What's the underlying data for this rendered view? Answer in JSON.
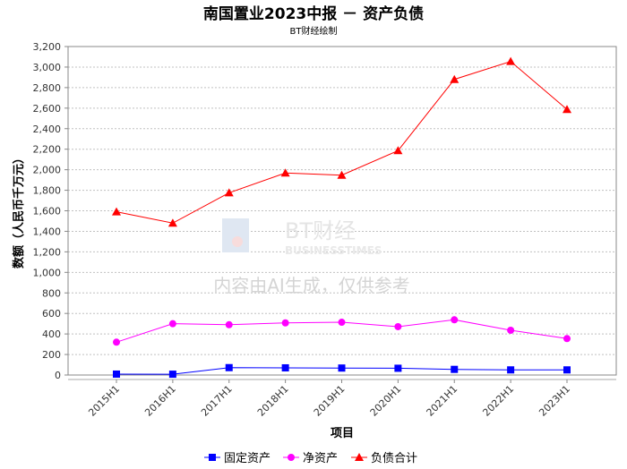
{
  "chart_data": {
    "type": "line",
    "title": "南国置业2023中报 － 资产负债",
    "subtitle": "BT财经绘制",
    "xlabel": "项目",
    "ylabel": "数额（人民币千万元）",
    "categories": [
      "2015H1",
      "2016H1",
      "2017H1",
      "2018H1",
      "2019H1",
      "2020H1",
      "2021H1",
      "2022H1",
      "2023H1"
    ],
    "ylim": [
      0,
      3200
    ],
    "yticks": [
      0,
      200,
      400,
      600,
      800,
      1000,
      1200,
      1400,
      1600,
      1800,
      2000,
      2200,
      2400,
      2600,
      2800,
      3000,
      3200
    ],
    "grid": true,
    "legend_position": "bottom",
    "series": [
      {
        "name": "固定资产",
        "color": "#0000ff",
        "marker": "square",
        "values": [
          9,
          8,
          72,
          70,
          68,
          66,
          55,
          50,
          50
        ]
      },
      {
        "name": "净资产",
        "color": "#ff00ff",
        "marker": "circle",
        "values": [
          320,
          500,
          490,
          508,
          514,
          471,
          538,
          436,
          355
        ]
      },
      {
        "name": "负债合计",
        "color": "#ff0000",
        "marker": "triangle",
        "values": [
          1590,
          1480,
          1775,
          1968,
          1947,
          2186,
          2880,
          3055,
          2587
        ]
      }
    ]
  },
  "watermark": {
    "brand": "BT财经",
    "brand_en": "BUSINESSTIMES",
    "notice": "内容由AI生成，仅供参考"
  }
}
